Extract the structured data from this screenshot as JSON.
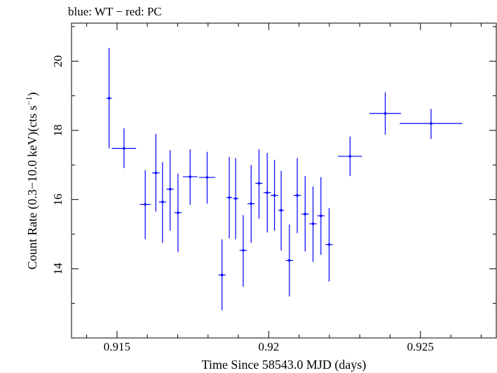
{
  "chart_data": {
    "type": "scatter",
    "title": "blue: WT − red: PC",
    "xlabel": "Time Since 58543.0 MJD (days)",
    "ylabel_main": "Count Rate (0.3−10.0 keV)(cts s",
    "ylabel_sup": "−1",
    "ylabel_end": ")",
    "xlim": [
      0.9135,
      0.9275
    ],
    "ylim": [
      12.0,
      21.1
    ],
    "x_ticks_major": [
      0.915,
      0.92,
      0.925
    ],
    "x_tick_labels": [
      "0.915",
      "0.92",
      "0.925"
    ],
    "y_ticks_major": [
      14,
      16,
      18,
      20
    ],
    "y_tick_labels": [
      "14",
      "16",
      "18",
      "20"
    ],
    "x_minor_step": 0.001,
    "y_minor_step": 1,
    "grid": false,
    "colors": {
      "series": "#0000ff",
      "axes": "#000000"
    },
    "series": [
      {
        "mode": "WT",
        "points": [
          {
            "x": 0.91474,
            "xerr": 9e-05,
            "y": 18.93,
            "ylo": 17.48,
            "yhi": 20.38
          },
          {
            "x": 0.91523,
            "xerr": 0.0004,
            "y": 17.48,
            "ylo": 16.91,
            "yhi": 18.06
          },
          {
            "x": 0.91593,
            "xerr": 0.00018,
            "y": 15.86,
            "ylo": 14.85,
            "yhi": 16.85
          },
          {
            "x": 0.91628,
            "xerr": 0.00012,
            "y": 16.77,
            "ylo": 15.65,
            "yhi": 17.9
          },
          {
            "x": 0.9165,
            "xerr": 0.00012,
            "y": 15.93,
            "ylo": 14.75,
            "yhi": 17.08
          },
          {
            "x": 0.91675,
            "xerr": 0.00012,
            "y": 16.3,
            "ylo": 15.1,
            "yhi": 17.43
          },
          {
            "x": 0.91701,
            "xerr": 0.00012,
            "y": 15.62,
            "ylo": 14.48,
            "yhi": 16.75
          },
          {
            "x": 0.91741,
            "xerr": 0.00024,
            "y": 16.66,
            "ylo": 15.85,
            "yhi": 17.45
          },
          {
            "x": 0.91797,
            "xerr": 0.00027,
            "y": 16.64,
            "ylo": 15.88,
            "yhi": 17.38
          },
          {
            "x": 0.91846,
            "xerr": 0.00012,
            "y": 13.82,
            "ylo": 12.8,
            "yhi": 14.85
          },
          {
            "x": 0.9187,
            "xerr": 9e-05,
            "y": 16.06,
            "ylo": 14.88,
            "yhi": 17.23
          },
          {
            "x": 0.91891,
            "xerr": 9e-05,
            "y": 16.03,
            "ylo": 14.85,
            "yhi": 17.2
          },
          {
            "x": 0.91916,
            "xerr": 0.00012,
            "y": 14.53,
            "ylo": 13.48,
            "yhi": 15.55
          },
          {
            "x": 0.91942,
            "xerr": 0.00012,
            "y": 15.88,
            "ylo": 14.75,
            "yhi": 17.0
          },
          {
            "x": 0.91968,
            "xerr": 0.00012,
            "y": 16.47,
            "ylo": 15.45,
            "yhi": 17.45
          },
          {
            "x": 0.91995,
            "xerr": 0.00012,
            "y": 16.2,
            "ylo": 15.05,
            "yhi": 17.35
          },
          {
            "x": 0.92019,
            "xerr": 0.00012,
            "y": 16.12,
            "ylo": 15.1,
            "yhi": 17.15
          },
          {
            "x": 0.92041,
            "xerr": 9e-05,
            "y": 15.69,
            "ylo": 14.53,
            "yhi": 16.83
          },
          {
            "x": 0.92068,
            "xerr": 0.00012,
            "y": 14.24,
            "ylo": 13.2,
            "yhi": 15.28
          },
          {
            "x": 0.92094,
            "xerr": 0.00012,
            "y": 16.12,
            "ylo": 15.03,
            "yhi": 17.2
          },
          {
            "x": 0.9212,
            "xerr": 0.00012,
            "y": 15.58,
            "ylo": 14.5,
            "yhi": 16.68
          },
          {
            "x": 0.92146,
            "xerr": 0.00012,
            "y": 15.3,
            "ylo": 14.2,
            "yhi": 16.38
          },
          {
            "x": 0.92172,
            "xerr": 0.00012,
            "y": 15.53,
            "ylo": 14.4,
            "yhi": 16.65
          },
          {
            "x": 0.92199,
            "xerr": 0.00012,
            "y": 14.7,
            "ylo": 13.63,
            "yhi": 15.75
          },
          {
            "x": 0.92268,
            "xerr": 0.0004,
            "y": 17.25,
            "ylo": 16.68,
            "yhi": 17.82
          },
          {
            "x": 0.92384,
            "xerr": 0.00052,
            "y": 18.49,
            "ylo": 17.88,
            "yhi": 19.1
          },
          {
            "x": 0.92535,
            "xerr": 0.00103,
            "y": 18.2,
            "ylo": 17.75,
            "yhi": 18.62
          }
        ]
      }
    ]
  }
}
